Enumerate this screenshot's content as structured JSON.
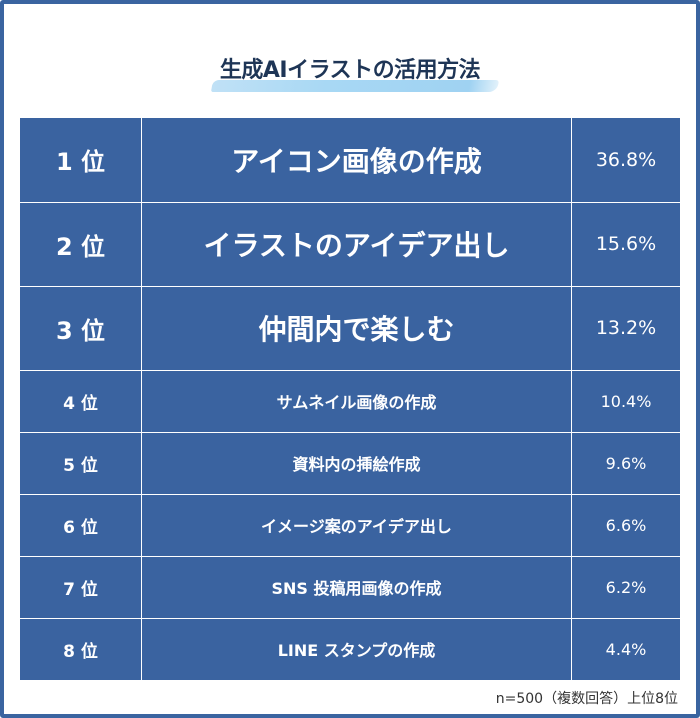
{
  "title": "生成AIイラストの活用方法",
  "rows": [
    {
      "rank": "1 位",
      "item": "アイコン画像の作成",
      "percent": "36.8%"
    },
    {
      "rank": "2 位",
      "item": "イラストのアイデア出し",
      "percent": "15.6%"
    },
    {
      "rank": "3 位",
      "item": "仲間内で楽しむ",
      "percent": "13.2%"
    },
    {
      "rank": "4 位",
      "item": "サムネイル画像の作成",
      "percent": "10.4%"
    },
    {
      "rank": "5 位",
      "item": "資料内の挿絵作成",
      "percent": "9.6%"
    },
    {
      "rank": "6 位",
      "item": "イメージ案のアイデア出し",
      "percent": "6.6%"
    },
    {
      "rank": "7 位",
      "item": "SNS 投稿用画像の作成",
      "percent": "6.2%"
    },
    {
      "rank": "8 位",
      "item": "LINE スタンプの作成",
      "percent": "4.4%"
    }
  ],
  "footer": "n=500（複数回答）上位8位",
  "colors": {
    "table_bg": "#3a63a0",
    "title": "#1e3556",
    "highlight": "#a8d8f4",
    "frame": "#3a64a0"
  }
}
